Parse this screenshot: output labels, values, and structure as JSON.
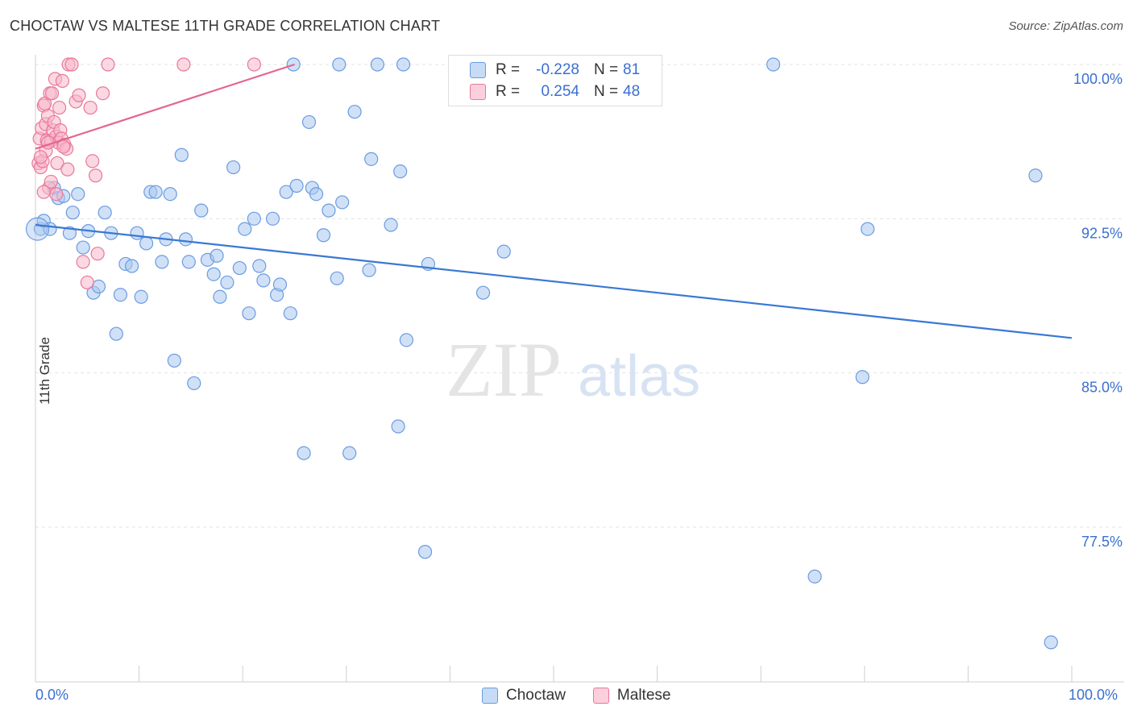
{
  "title": "CHOCTAW VS MALTESE 11TH GRADE CORRELATION CHART",
  "source": "Source: ZipAtlas.com",
  "watermark": {
    "zip": "ZIP",
    "atlas": "atlas"
  },
  "legend_stats": [
    {
      "r_label": "R =",
      "r_value": "-0.228",
      "n_label": "N =",
      "n_value": "81",
      "fill": "#aac8f0",
      "stroke": "#6b9be0"
    },
    {
      "r_label": "R =",
      "r_value": "0.254",
      "n_label": "N =",
      "n_value": "48",
      "fill": "#f7b8ca",
      "stroke": "#e8789a"
    }
  ],
  "x_axis": {
    "left_label": "0.0%",
    "right_label": "100.0%"
  },
  "chart_data": {
    "type": "scatter",
    "title": "CHOCTAW VS MALTESE 11TH GRADE CORRELATION CHART",
    "xlabel": "",
    "ylabel": "11th Grade",
    "xlim": [
      0,
      100
    ],
    "ylim": [
      70.5,
      100.6
    ],
    "yticks": [
      77.5,
      85.0,
      92.5,
      100.0
    ],
    "ytick_labels": [
      "77.5%",
      "85.0%",
      "92.5%",
      "100.0%"
    ],
    "grid": true,
    "series": [
      {
        "name": "Choctaw",
        "color": "#6b9be0",
        "fill": "#aac8f0",
        "trend": {
          "x0": 0,
          "y0": 92.2,
          "x1": 100,
          "y1": 86.7,
          "color": "#3a78d4"
        },
        "points": [
          [
            0.5,
            92.0
          ],
          [
            0.8,
            92.4
          ],
          [
            1.4,
            92.0
          ],
          [
            1.8,
            94.0
          ],
          [
            2.2,
            93.5
          ],
          [
            2.7,
            93.6
          ],
          [
            3.3,
            91.8
          ],
          [
            3.6,
            92.8
          ],
          [
            4.1,
            93.7
          ],
          [
            4.6,
            91.1
          ],
          [
            5.1,
            91.9
          ],
          [
            5.6,
            88.9
          ],
          [
            6.1,
            89.2
          ],
          [
            6.7,
            92.8
          ],
          [
            7.3,
            91.8
          ],
          [
            7.8,
            86.9
          ],
          [
            8.2,
            88.8
          ],
          [
            8.7,
            90.3
          ],
          [
            9.3,
            90.2
          ],
          [
            9.8,
            91.8
          ],
          [
            10.2,
            88.7
          ],
          [
            10.7,
            91.3
          ],
          [
            11.1,
            93.8
          ],
          [
            11.6,
            93.8
          ],
          [
            12.2,
            90.4
          ],
          [
            12.6,
            91.5
          ],
          [
            13.0,
            93.7
          ],
          [
            13.4,
            85.6
          ],
          [
            14.1,
            95.6
          ],
          [
            14.5,
            91.5
          ],
          [
            14.8,
            90.4
          ],
          [
            15.3,
            84.5
          ],
          [
            16.0,
            92.9
          ],
          [
            16.6,
            90.5
          ],
          [
            17.2,
            89.8
          ],
          [
            17.5,
            90.7
          ],
          [
            17.8,
            88.7
          ],
          [
            18.5,
            89.4
          ],
          [
            19.1,
            95.0
          ],
          [
            19.7,
            90.1
          ],
          [
            20.2,
            92.0
          ],
          [
            20.6,
            87.9
          ],
          [
            21.1,
            92.5
          ],
          [
            21.6,
            90.2
          ],
          [
            22.0,
            89.5
          ],
          [
            22.9,
            92.5
          ],
          [
            23.3,
            88.8
          ],
          [
            23.6,
            89.3
          ],
          [
            24.2,
            93.8
          ],
          [
            24.6,
            87.9
          ],
          [
            25.2,
            94.1
          ],
          [
            25.9,
            81.1
          ],
          [
            26.4,
            97.2
          ],
          [
            26.7,
            94.0
          ],
          [
            27.1,
            93.7
          ],
          [
            27.8,
            91.7
          ],
          [
            28.3,
            92.9
          ],
          [
            29.1,
            89.6
          ],
          [
            29.6,
            93.3
          ],
          [
            30.3,
            81.1
          ],
          [
            30.8,
            97.7
          ],
          [
            32.2,
            90.0
          ],
          [
            32.4,
            95.4
          ],
          [
            33.0,
            100.0
          ],
          [
            34.3,
            92.2
          ],
          [
            35.0,
            82.4
          ],
          [
            35.5,
            100.0
          ],
          [
            35.2,
            94.8
          ],
          [
            35.8,
            86.6
          ],
          [
            37.6,
            76.3
          ],
          [
            37.9,
            90.3
          ],
          [
            43.2,
            88.9
          ],
          [
            45.2,
            90.9
          ],
          [
            71.2,
            100.0
          ],
          [
            75.2,
            75.1
          ],
          [
            79.8,
            84.8
          ],
          [
            80.3,
            92.0
          ],
          [
            96.5,
            94.6
          ],
          [
            98.0,
            71.9
          ],
          [
            29.3,
            100.0
          ],
          [
            24.9,
            100.0
          ]
        ]
      },
      {
        "name": "Maltese",
        "color": "#e8789a",
        "fill": "#f7b8ca",
        "trend": {
          "x0": 0,
          "y0": 95.9,
          "x1": 25,
          "y1": 100.0,
          "color": "#e4668f"
        },
        "points": [
          [
            0.3,
            95.2
          ],
          [
            0.4,
            96.4
          ],
          [
            0.5,
            95.0
          ],
          [
            0.6,
            96.9
          ],
          [
            0.7,
            95.3
          ],
          [
            0.8,
            98.0
          ],
          [
            0.9,
            98.1
          ],
          [
            1.0,
            97.1
          ],
          [
            1.1,
            96.3
          ],
          [
            1.2,
            97.5
          ],
          [
            1.3,
            94.0
          ],
          [
            1.4,
            98.6
          ],
          [
            1.5,
            96.3
          ],
          [
            1.6,
            98.6
          ],
          [
            1.7,
            96.8
          ],
          [
            1.8,
            97.2
          ],
          [
            1.9,
            99.3
          ],
          [
            2.0,
            96.5
          ],
          [
            2.1,
            95.2
          ],
          [
            2.2,
            96.2
          ],
          [
            2.3,
            97.9
          ],
          [
            2.4,
            96.8
          ],
          [
            2.5,
            96.4
          ],
          [
            2.6,
            99.2
          ],
          [
            2.8,
            96.1
          ],
          [
            3.0,
            95.9
          ],
          [
            3.2,
            100.0
          ],
          [
            3.5,
            100.0
          ],
          [
            3.9,
            98.2
          ],
          [
            4.2,
            98.5
          ],
          [
            4.6,
            90.4
          ],
          [
            5.0,
            89.4
          ],
          [
            5.3,
            97.9
          ],
          [
            5.5,
            95.3
          ],
          [
            5.8,
            94.6
          ],
          [
            6.0,
            90.8
          ],
          [
            6.5,
            98.6
          ],
          [
            7.0,
            100.0
          ],
          [
            14.3,
            100.0
          ],
          [
            21.1,
            100.0
          ],
          [
            1.0,
            95.8
          ],
          [
            1.5,
            94.3
          ],
          [
            2.0,
            93.7
          ],
          [
            0.8,
            93.8
          ],
          [
            0.5,
            95.5
          ],
          [
            1.2,
            96.2
          ],
          [
            2.7,
            96.0
          ],
          [
            3.1,
            94.9
          ]
        ]
      }
    ]
  }
}
